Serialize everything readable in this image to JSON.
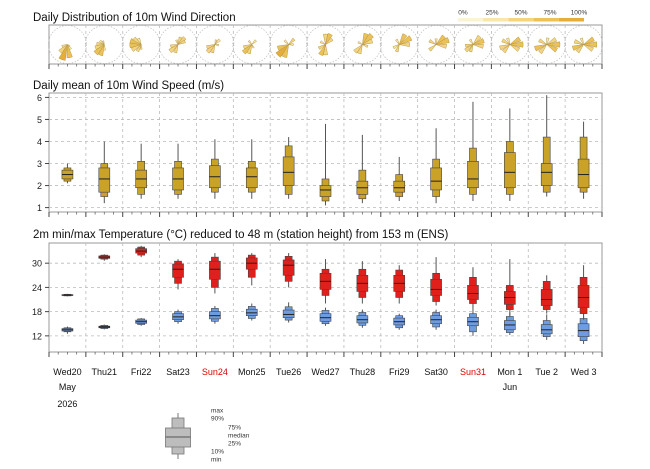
{
  "panels": {
    "wind_dir_title": "Daily Distribution of 10m Wind Direction",
    "wind_speed_title": "Daily mean of 10m Wind Speed (m/s)",
    "temp_title": "2m min/max Temperature (°C) reduced to 48 m (station height) from 153 m (ENS)"
  },
  "rose_legend": {
    "labels": [
      "0%",
      "25%",
      "50%",
      "75%",
      "100%"
    ],
    "colors": [
      "#fbf3d6",
      "#f8e6ad",
      "#f3d580",
      "#ecc258",
      "#e4ae38"
    ]
  },
  "days": {
    "labels": [
      "Wed20",
      "Thu21",
      "Fri22",
      "Sat23",
      "Sun24",
      "Mon25",
      "Tue26",
      "Wed27",
      "Thu28",
      "Fri29",
      "Sat30",
      "Sun31",
      "Mon 1",
      "Tue 2",
      "Wed 3"
    ],
    "weekend": [
      false,
      false,
      false,
      false,
      true,
      false,
      false,
      false,
      false,
      false,
      false,
      true,
      false,
      false,
      false
    ],
    "months": [
      {
        "label": "May",
        "index": 0
      },
      {
        "label": "Jun",
        "index": 12
      }
    ],
    "year": "2026",
    "weekend_color": "#dd0000"
  },
  "box_legend": {
    "max": "max",
    "p90": "90%",
    "p75": "75%",
    "median": "median",
    "p25": "25%",
    "p10": "10%",
    "min": "min"
  },
  "chart_data": [
    {
      "type": "box",
      "title": "Daily mean of 10m Wind Speed (m/s)",
      "ylim": [
        0.8,
        6.2
      ],
      "yticks": [
        1,
        2,
        3,
        4,
        5,
        6
      ],
      "color": "#c9a227",
      "days": [
        {
          "min": 2.1,
          "p10": 2.2,
          "p25": 2.3,
          "median": 2.5,
          "p75": 2.7,
          "p90": 2.8,
          "max": 3.0
        },
        {
          "min": 1.2,
          "p10": 1.5,
          "p25": 1.7,
          "median": 2.3,
          "p75": 2.8,
          "p90": 3.0,
          "max": 4.0
        },
        {
          "min": 1.4,
          "p10": 1.6,
          "p25": 1.9,
          "median": 2.3,
          "p75": 2.7,
          "p90": 3.1,
          "max": 3.9
        },
        {
          "min": 1.4,
          "p10": 1.6,
          "p25": 1.8,
          "median": 2.3,
          "p75": 2.8,
          "p90": 3.1,
          "max": 3.9
        },
        {
          "min": 1.4,
          "p10": 1.7,
          "p25": 1.9,
          "median": 2.4,
          "p75": 2.9,
          "p90": 3.2,
          "max": 4.1
        },
        {
          "min": 1.4,
          "p10": 1.7,
          "p25": 1.9,
          "median": 2.4,
          "p75": 2.8,
          "p90": 3.1,
          "max": 4.1
        },
        {
          "min": 1.4,
          "p10": 1.6,
          "p25": 2.0,
          "median": 2.6,
          "p75": 3.3,
          "p90": 3.8,
          "max": 4.2
        },
        {
          "min": 1.1,
          "p10": 1.3,
          "p25": 1.5,
          "median": 1.8,
          "p75": 2.0,
          "p90": 2.3,
          "max": 4.8
        },
        {
          "min": 1.2,
          "p10": 1.4,
          "p25": 1.6,
          "median": 1.9,
          "p75": 2.2,
          "p90": 2.7,
          "max": 4.3
        },
        {
          "min": 1.3,
          "p10": 1.5,
          "p25": 1.7,
          "median": 1.9,
          "p75": 2.2,
          "p90": 2.5,
          "max": 3.3
        },
        {
          "min": 1.2,
          "p10": 1.5,
          "p25": 1.8,
          "median": 2.2,
          "p75": 2.8,
          "p90": 3.2,
          "max": 4.6
        },
        {
          "min": 1.3,
          "p10": 1.6,
          "p25": 1.9,
          "median": 2.3,
          "p75": 3.1,
          "p90": 3.7,
          "max": 5.8
        },
        {
          "min": 1.3,
          "p10": 1.6,
          "p25": 1.9,
          "median": 2.6,
          "p75": 3.5,
          "p90": 4.0,
          "max": 5.5
        },
        {
          "min": 1.5,
          "p10": 1.7,
          "p25": 2.0,
          "median": 2.6,
          "p75": 3.0,
          "p90": 4.2,
          "max": 6.1
        },
        {
          "min": 1.4,
          "p10": 1.7,
          "p25": 1.9,
          "median": 2.5,
          "p75": 3.2,
          "p90": 4.2,
          "max": 4.9
        }
      ]
    },
    {
      "type": "box",
      "title": "2m min/max Temperature (°C) reduced to 48 m (station height) from 153 m (ENS)",
      "ylim": [
        8,
        35
      ],
      "yticks": [
        12,
        18,
        24,
        30
      ],
      "series": [
        {
          "name": "min",
          "color": "#6e9ce0",
          "days": [
            {
              "min": 12.5,
              "p10": 13.0,
              "p25": 13.2,
              "median": 13.5,
              "p75": 13.8,
              "p90": 14.0,
              "max": 14.3
            },
            {
              "min": 13.6,
              "p10": 13.8,
              "p25": 14.0,
              "median": 14.2,
              "p75": 14.4,
              "p90": 14.6,
              "max": 14.8
            },
            {
              "min": 14.5,
              "p10": 14.8,
              "p25": 15.1,
              "median": 15.5,
              "p75": 15.9,
              "p90": 16.2,
              "max": 16.4
            },
            {
              "min": 15.0,
              "p10": 15.5,
              "p25": 16.0,
              "median": 16.7,
              "p75": 17.5,
              "p90": 18.0,
              "max": 18.5
            },
            {
              "min": 15.0,
              "p10": 15.6,
              "p25": 16.2,
              "median": 17.0,
              "p75": 18.0,
              "p90": 18.8,
              "max": 19.4
            },
            {
              "min": 15.8,
              "p10": 16.3,
              "p25": 17.0,
              "median": 17.7,
              "p75": 18.6,
              "p90": 19.3,
              "max": 20.0
            },
            {
              "min": 15.3,
              "p10": 15.9,
              "p25": 16.5,
              "median": 17.3,
              "p75": 18.4,
              "p90": 19.2,
              "max": 20.3
            },
            {
              "min": 14.5,
              "p10": 15.0,
              "p25": 15.6,
              "median": 16.5,
              "p75": 17.5,
              "p90": 18.3,
              "max": 19.0
            },
            {
              "min": 14.0,
              "p10": 14.6,
              "p25": 15.2,
              "median": 16.0,
              "p75": 17.0,
              "p90": 17.8,
              "max": 18.5
            },
            {
              "min": 13.5,
              "p10": 14.0,
              "p25": 14.7,
              "median": 15.5,
              "p75": 16.4,
              "p90": 17.0,
              "max": 17.5
            },
            {
              "min": 13.5,
              "p10": 14.2,
              "p25": 15.0,
              "median": 16.0,
              "p75": 17.0,
              "p90": 17.8,
              "max": 18.5
            },
            {
              "min": 12.0,
              "p10": 13.0,
              "p25": 14.5,
              "median": 15.5,
              "p75": 16.6,
              "p90": 17.5,
              "max": 20.5
            },
            {
              "min": 12.2,
              "p10": 12.8,
              "p25": 13.5,
              "median": 14.7,
              "p75": 15.8,
              "p90": 16.8,
              "max": 17.8
            },
            {
              "min": 11.0,
              "p10": 11.8,
              "p25": 12.5,
              "median": 13.5,
              "p75": 14.8,
              "p90": 15.8,
              "max": 17.3
            },
            {
              "min": 10.0,
              "p10": 10.8,
              "p25": 11.8,
              "median": 13.3,
              "p75": 15.0,
              "p90": 16.3,
              "max": 17.8
            }
          ]
        },
        {
          "name": "max",
          "color": "#e0201a",
          "days": [
            {
              "min": 21.8,
              "p10": 21.9,
              "p25": 22.0,
              "median": 22.1,
              "p75": 22.2,
              "p90": 22.3,
              "max": 22.4
            },
            {
              "min": 30.6,
              "p10": 31.0,
              "p25": 31.2,
              "median": 31.5,
              "p75": 31.8,
              "p90": 32.0,
              "max": 32.2
            },
            {
              "min": 31.5,
              "p10": 32.0,
              "p25": 32.5,
              "median": 33.0,
              "p75": 33.6,
              "p90": 34.0,
              "max": 34.3
            },
            {
              "min": 23.5,
              "p10": 25.0,
              "p25": 26.5,
              "median": 28.5,
              "p75": 29.8,
              "p90": 30.5,
              "max": 31.0
            },
            {
              "min": 22.5,
              "p10": 24.0,
              "p25": 26.0,
              "median": 28.5,
              "p75": 30.5,
              "p90": 31.5,
              "max": 32.5
            },
            {
              "min": 24.5,
              "p10": 26.5,
              "p25": 28.5,
              "median": 30.0,
              "p75": 31.3,
              "p90": 32.0,
              "max": 32.5
            },
            {
              "min": 24.0,
              "p10": 25.5,
              "p25": 27.0,
              "median": 29.5,
              "p75": 30.8,
              "p90": 31.7,
              "max": 32.5
            },
            {
              "min": 20.0,
              "p10": 22.0,
              "p25": 23.5,
              "median": 25.5,
              "p75": 27.5,
              "p90": 28.5,
              "max": 31.0
            },
            {
              "min": 20.0,
              "p10": 21.5,
              "p25": 23.0,
              "median": 25.0,
              "p75": 27.0,
              "p90": 28.5,
              "max": 30.5
            },
            {
              "min": 20.0,
              "p10": 21.5,
              "p25": 23.0,
              "median": 25.0,
              "p75": 27.0,
              "p90": 28.3,
              "max": 29.5
            },
            {
              "min": 19.5,
              "p10": 20.5,
              "p25": 22.0,
              "median": 23.5,
              "p75": 26.0,
              "p90": 27.5,
              "max": 31.5
            },
            {
              "min": 19.0,
              "p10": 20.0,
              "p25": 21.0,
              "median": 22.5,
              "p75": 24.5,
              "p90": 26.5,
              "max": 29.0
            },
            {
              "min": 17.0,
              "p10": 18.5,
              "p25": 19.8,
              "median": 21.5,
              "p75": 23.0,
              "p90": 24.5,
              "max": 31.0
            },
            {
              "min": 17.5,
              "p10": 18.5,
              "p25": 19.5,
              "median": 21.0,
              "p75": 23.5,
              "p90": 25.5,
              "max": 27.0
            },
            {
              "min": 16.0,
              "p10": 17.5,
              "p25": 19.0,
              "median": 21.5,
              "p75": 24.5,
              "p90": 26.5,
              "max": 29.5
            }
          ]
        }
      ]
    }
  ],
  "roses": [
    {
      "petals": [
        [
          170,
          0.7
        ],
        [
          200,
          0.85
        ],
        [
          225,
          0.55
        ],
        [
          250,
          0.3
        ],
        [
          145,
          0.3
        ],
        [
          125,
          0.15
        ]
      ]
    },
    {
      "petals": [
        [
          200,
          0.6
        ],
        [
          225,
          0.65
        ],
        [
          250,
          0.5
        ],
        [
          275,
          0.4
        ],
        [
          310,
          0.3
        ],
        [
          340,
          0.2
        ],
        [
          180,
          0.3
        ]
      ]
    },
    {
      "petals": [
        [
          240,
          0.55
        ],
        [
          265,
          0.6
        ],
        [
          290,
          0.6
        ],
        [
          310,
          0.5
        ],
        [
          335,
          0.35
        ],
        [
          210,
          0.4
        ],
        [
          180,
          0.25
        ]
      ]
    },
    {
      "petals": [
        [
          20,
          0.4
        ],
        [
          45,
          0.5
        ],
        [
          65,
          0.4
        ],
        [
          200,
          0.45
        ],
        [
          230,
          0.55
        ],
        [
          255,
          0.4
        ],
        [
          340,
          0.25
        ]
      ]
    },
    {
      "petals": [
        [
          200,
          0.45
        ],
        [
          225,
          0.55
        ],
        [
          250,
          0.45
        ],
        [
          45,
          0.35
        ],
        [
          15,
          0.25
        ],
        [
          100,
          0.2
        ]
      ]
    },
    {
      "petals": [
        [
          200,
          0.5
        ],
        [
          225,
          0.6
        ],
        [
          250,
          0.45
        ],
        [
          320,
          0.25
        ],
        [
          45,
          0.3
        ],
        [
          150,
          0.2
        ]
      ]
    },
    {
      "petals": [
        [
          200,
          0.7
        ],
        [
          225,
          0.8
        ],
        [
          250,
          0.6
        ],
        [
          45,
          0.4
        ],
        [
          90,
          0.25
        ],
        [
          315,
          0.3
        ]
      ]
    },
    {
      "petals": [
        [
          0,
          0.55
        ],
        [
          25,
          0.6
        ],
        [
          50,
          0.45
        ],
        [
          180,
          0.55
        ],
        [
          205,
          0.6
        ],
        [
          240,
          0.4
        ],
        [
          300,
          0.3
        ]
      ]
    },
    {
      "petals": [
        [
          20,
          0.6
        ],
        [
          45,
          0.7
        ],
        [
          70,
          0.55
        ],
        [
          200,
          0.5
        ],
        [
          225,
          0.55
        ],
        [
          110,
          0.3
        ],
        [
          300,
          0.25
        ]
      ]
    },
    {
      "petals": [
        [
          30,
          0.6
        ],
        [
          60,
          0.7
        ],
        [
          90,
          0.55
        ],
        [
          200,
          0.4
        ],
        [
          240,
          0.35
        ],
        [
          330,
          0.3
        ]
      ]
    },
    {
      "petals": [
        [
          45,
          0.6
        ],
        [
          70,
          0.7
        ],
        [
          100,
          0.55
        ],
        [
          230,
          0.45
        ],
        [
          300,
          0.4
        ],
        [
          0,
          0.3
        ]
      ]
    },
    {
      "petals": [
        [
          40,
          0.55
        ],
        [
          70,
          0.6
        ],
        [
          100,
          0.55
        ],
        [
          200,
          0.4
        ],
        [
          230,
          0.5
        ],
        [
          260,
          0.4
        ],
        [
          330,
          0.3
        ]
      ]
    },
    {
      "petals": [
        [
          60,
          0.6
        ],
        [
          90,
          0.7
        ],
        [
          120,
          0.55
        ],
        [
          220,
          0.5
        ],
        [
          250,
          0.55
        ],
        [
          300,
          0.45
        ],
        [
          340,
          0.35
        ]
      ]
    },
    {
      "petals": [
        [
          60,
          0.55
        ],
        [
          90,
          0.7
        ],
        [
          120,
          0.6
        ],
        [
          220,
          0.55
        ],
        [
          250,
          0.65
        ],
        [
          300,
          0.45
        ],
        [
          10,
          0.35
        ]
      ]
    },
    {
      "petals": [
        [
          60,
          0.6
        ],
        [
          90,
          0.7
        ],
        [
          120,
          0.55
        ],
        [
          220,
          0.5
        ],
        [
          250,
          0.6
        ],
        [
          290,
          0.5
        ],
        [
          340,
          0.35
        ]
      ]
    }
  ]
}
